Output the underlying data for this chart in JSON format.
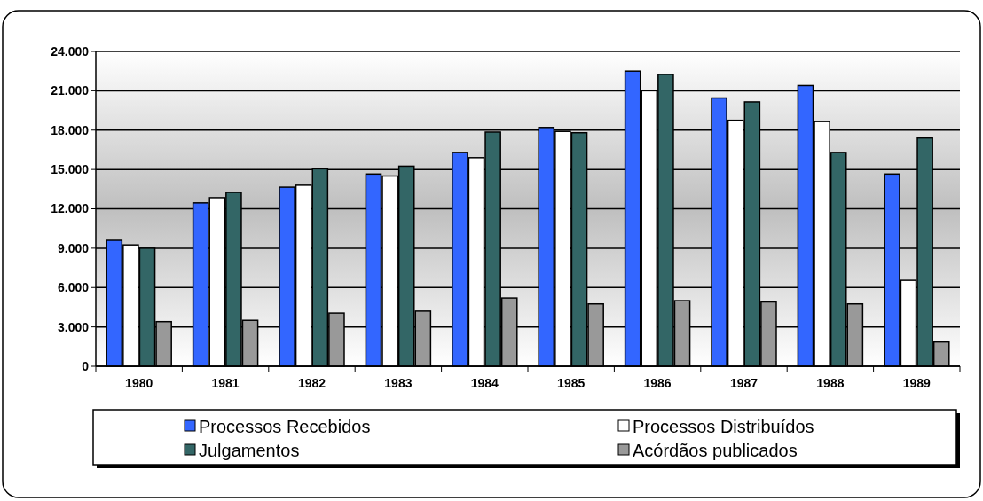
{
  "chart_data": {
    "type": "bar",
    "categories": [
      "1980",
      "1981",
      "1982",
      "1983",
      "1984",
      "1985",
      "1986",
      "1987",
      "1988",
      "1989"
    ],
    "series": [
      {
        "name": "Processos Recebidos",
        "color": "#3366ff",
        "values": [
          9600,
          12450,
          13650,
          14650,
          16300,
          18200,
          22500,
          20450,
          21400,
          14650
        ]
      },
      {
        "name": "Processos Distribuídos",
        "color": "#ffffff",
        "values": [
          9250,
          12850,
          13800,
          14500,
          15900,
          17900,
          21000,
          18750,
          18650,
          6550
        ]
      },
      {
        "name": "Julgamentos",
        "color": "#336666",
        "values": [
          9000,
          13250,
          15050,
          15250,
          17850,
          17800,
          22250,
          20150,
          16300,
          17400
        ]
      },
      {
        "name": "Acórdãos publicados",
        "color": "#999999",
        "values": [
          3400,
          3500,
          4050,
          4200,
          5200,
          4750,
          5000,
          4900,
          4750,
          1850
        ]
      }
    ],
    "ylim": [
      0,
      24000
    ],
    "yticks": [
      {
        "value": 0,
        "label": "0"
      },
      {
        "value": 3000,
        "label": "3.000"
      },
      {
        "value": 6000,
        "label": "6.000"
      },
      {
        "value": 9000,
        "label": "9.000"
      },
      {
        "value": 12000,
        "label": "12.000"
      },
      {
        "value": 15000,
        "label": "15.000"
      },
      {
        "value": 18000,
        "label": "18.000"
      },
      {
        "value": 21000,
        "label": "21.000"
      },
      {
        "value": 24000,
        "label": "24.000"
      }
    ],
    "grid": "y",
    "legend": "bottom"
  }
}
